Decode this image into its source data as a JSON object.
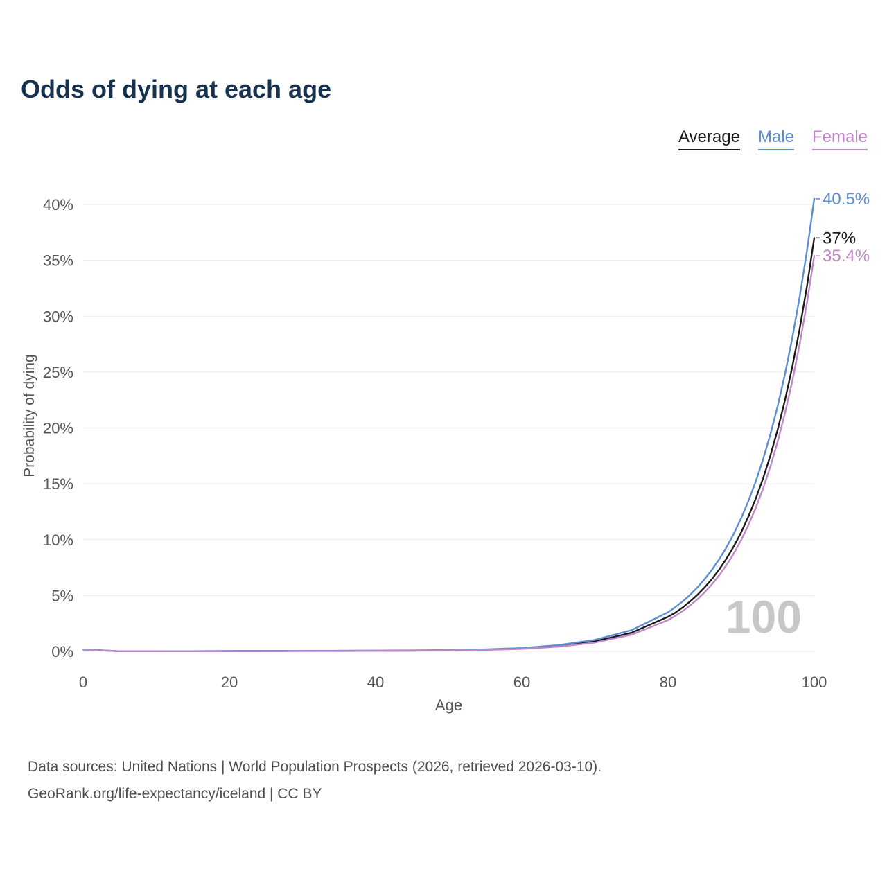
{
  "title": "Odds of dying at each age",
  "legend": [
    {
      "label": "Average",
      "color": "#1a1a1a"
    },
    {
      "label": "Male",
      "color": "#5b8dd3"
    },
    {
      "label": "Female",
      "color": "#c087c7"
    }
  ],
  "watermark": "100",
  "footer": {
    "line1": "Data sources: United Nations | World Population Prospects (2026, retrieved 2026-03-10).",
    "line2": "GeoRank.org/life-expectancy/iceland | CC BY"
  },
  "chart_data": {
    "type": "line",
    "title": "Odds of dying at each age",
    "xlabel": "Age",
    "ylabel": "Probability of dying",
    "xlim": [
      0,
      100
    ],
    "ylim": [
      0,
      40.5
    ],
    "xticks": [
      0,
      20,
      40,
      60,
      80,
      100
    ],
    "yticks": [
      0,
      5,
      10,
      15,
      20,
      25,
      30,
      35,
      40
    ],
    "ytick_suffix": "%",
    "grid": "horizontal",
    "legend_position": "top-right",
    "x": [
      0,
      5,
      10,
      15,
      20,
      25,
      30,
      35,
      40,
      45,
      50,
      55,
      60,
      65,
      70,
      75,
      80,
      81,
      82,
      83,
      84,
      85,
      86,
      87,
      88,
      89,
      90,
      91,
      92,
      93,
      94,
      95,
      96,
      97,
      98,
      99,
      100
    ],
    "series": [
      {
        "name": "Average",
        "color": "#1a1a1a",
        "end_label": "37%",
        "end_value": 37.0,
        "values": [
          0.17,
          0.01,
          0.01,
          0.02,
          0.03,
          0.03,
          0.04,
          0.04,
          0.05,
          0.07,
          0.1,
          0.15,
          0.26,
          0.49,
          0.9,
          1.67,
          3.1,
          3.47,
          3.93,
          4.46,
          5.05,
          5.72,
          6.47,
          7.33,
          8.31,
          9.41,
          10.65,
          12.07,
          13.67,
          15.48,
          17.53,
          19.85,
          22.49,
          25.47,
          28.84,
          32.67,
          37.0
        ]
      },
      {
        "name": "Male",
        "color": "#5b8dd3",
        "end_label": "40.5%",
        "end_value": 40.5,
        "values": [
          0.18,
          0.01,
          0.01,
          0.02,
          0.04,
          0.05,
          0.05,
          0.06,
          0.07,
          0.09,
          0.12,
          0.18,
          0.3,
          0.56,
          1.03,
          1.9,
          3.5,
          3.96,
          4.47,
          5.05,
          5.71,
          6.46,
          7.3,
          8.25,
          9.32,
          10.54,
          11.91,
          13.46,
          15.21,
          17.19,
          19.43,
          21.96,
          24.82,
          28.06,
          31.71,
          35.83,
          40.5
        ]
      },
      {
        "name": "Female",
        "color": "#c087c7",
        "end_label": "35.4%",
        "end_value": 35.4,
        "values": [
          0.15,
          0.01,
          0.01,
          0.01,
          0.02,
          0.02,
          0.03,
          0.03,
          0.04,
          0.06,
          0.09,
          0.13,
          0.22,
          0.42,
          0.79,
          1.49,
          2.8,
          3.18,
          3.61,
          4.1,
          4.65,
          5.28,
          6.0,
          6.81,
          7.73,
          8.77,
          9.96,
          11.31,
          12.84,
          14.57,
          16.54,
          18.78,
          21.32,
          24.2,
          27.47,
          31.18,
          35.4
        ]
      }
    ]
  }
}
